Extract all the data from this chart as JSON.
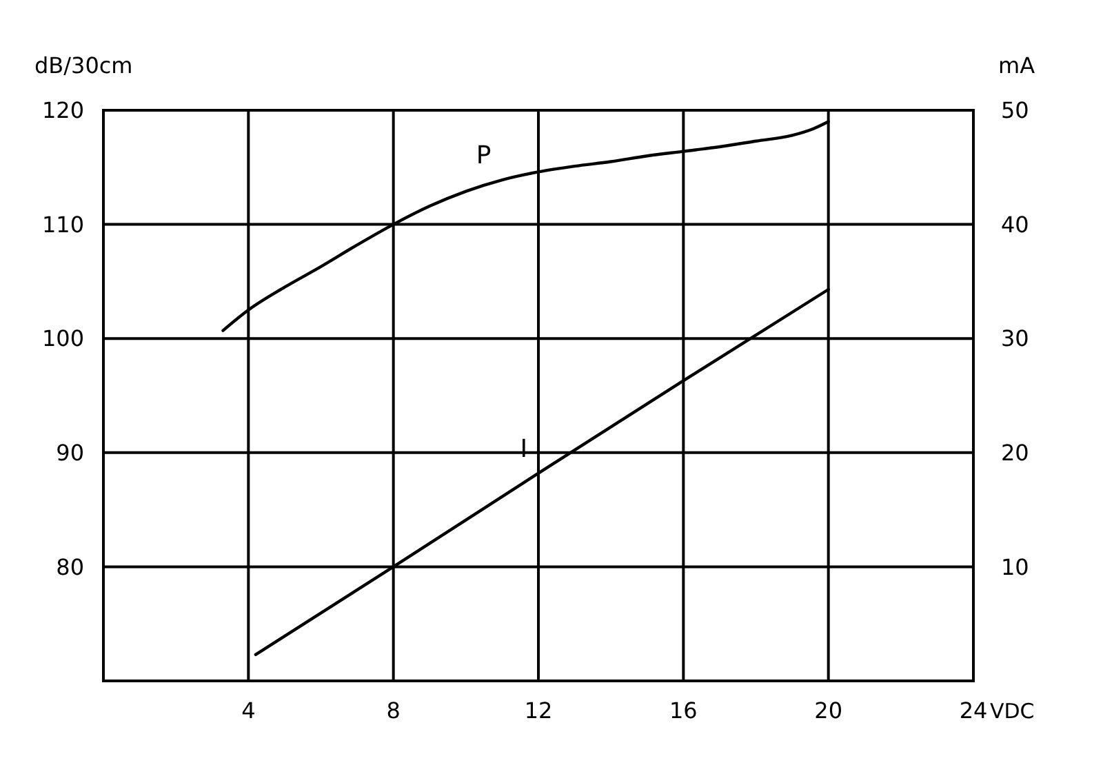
{
  "chart_data": {
    "type": "line",
    "xlabel": "VDC",
    "ylabel": "dB/30cm",
    "y2label": "mA",
    "xlim": [
      0,
      24
    ],
    "xticks": [
      4,
      8,
      12,
      16,
      20,
      24
    ],
    "ylim": [
      70,
      120
    ],
    "yticks": [
      80,
      90,
      100,
      110,
      120
    ],
    "y2lim": [
      0,
      50
    ],
    "y2ticks": [
      10,
      20,
      30,
      40,
      50
    ],
    "grid": true,
    "marker": "none",
    "line_style": "solid",
    "series": [
      {
        "name": "P",
        "color": "#000000",
        "x": [
          3.3,
          4,
          5,
          6,
          7,
          8,
          9,
          10,
          11,
          12,
          13,
          14,
          15,
          16,
          17,
          18,
          19,
          19.6,
          20
        ],
        "values": [
          100.7,
          102.5,
          104.5,
          106.3,
          108.2,
          110,
          111.6,
          112.9,
          113.9,
          114.6,
          115.1,
          115.5,
          116,
          116.4,
          116.8,
          117.3,
          117.8,
          118.4,
          119
        ]
      },
      {
        "name": "I",
        "color": "#000000",
        "axis": "y2",
        "x": [
          4.2,
          8,
          12,
          16,
          20
        ],
        "values": [
          2.3,
          10,
          18.2,
          26.3,
          34.3
        ]
      }
    ]
  }
}
